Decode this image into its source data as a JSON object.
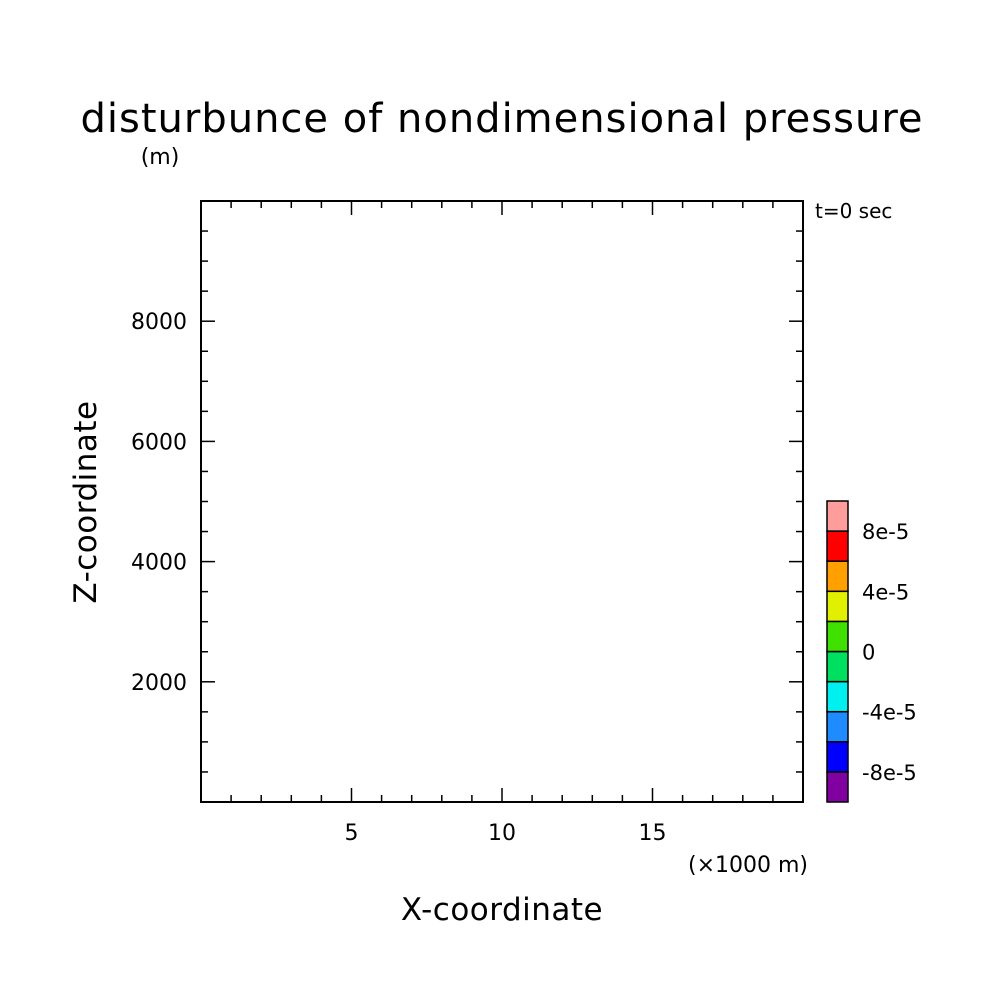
{
  "chart_data": {
    "type": "heatmap",
    "title": "disturbunce of nondimensional pressure",
    "ylabel_unit": "(m)",
    "xlabel": "X-coordinate",
    "ylabel": "Z-coordinate",
    "xlabel_unit": "(×1000 m)",
    "time_label": "t=0 sec",
    "xlim": [
      0,
      20
    ],
    "ylim": [
      0,
      10000
    ],
    "x_major_ticks": [
      5,
      10,
      15
    ],
    "x_tick_labels": [
      "5",
      "10",
      "15"
    ],
    "x_minor_step": 1,
    "y_major_ticks": [
      2000,
      4000,
      6000,
      8000
    ],
    "y_tick_labels": [
      "2000",
      "4000",
      "6000",
      "8000"
    ],
    "y_minor_step": 500,
    "values": [],
    "colorbar": {
      "levels": [
        -0.0001,
        -8e-05,
        -6e-05,
        -4e-05,
        -2e-05,
        0,
        2e-05,
        4e-05,
        6e-05,
        8e-05,
        0.0001
      ],
      "colors": [
        "#8000a0",
        "#0000ff",
        "#1e8cff",
        "#00f0f0",
        "#00e060",
        "#40e000",
        "#e0f000",
        "#ffa000",
        "#ff0000",
        "#ff9c9c"
      ],
      "tick_values": [
        -8e-05,
        -4e-05,
        0,
        4e-05,
        8e-05
      ],
      "tick_labels": [
        "-8e-5",
        "-4e-5",
        "0",
        "4e-5",
        "8e-5"
      ]
    }
  }
}
